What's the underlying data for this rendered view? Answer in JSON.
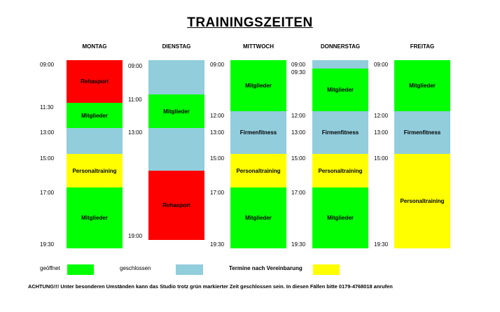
{
  "title": "TRAININGSZEITEN",
  "colors": {
    "geoeffnet": "#00ff00",
    "geschlossen": "#92cddc",
    "vereinbarung": "#ffff00",
    "rehasport": "#ff0000"
  },
  "days": {
    "montag": {
      "name": "MONTAG",
      "times": [
        "09:00",
        "11:30",
        "13:00",
        "15:00",
        "17:00",
        "19:30"
      ],
      "blocks": [
        "Rehasport",
        "Mitglieder",
        "",
        "Personaltraining",
        "Mitglieder"
      ]
    },
    "dienstag": {
      "name": "DIENSTAG",
      "times": [
        "09:00",
        "11:00",
        "13:00",
        "19:00"
      ],
      "blocks": [
        "",
        "Mitglieder",
        "",
        "Rehasport"
      ]
    },
    "mittwoch": {
      "name": "MITTWOCH",
      "times": [
        "09:00",
        "12:00",
        "13:00",
        "15:00",
        "17:00",
        "19:30"
      ],
      "blocks": [
        "Mitglieder",
        "Firmenfitness",
        "Personaltraining",
        "Mitglieder"
      ]
    },
    "donnerstag": {
      "name": "DONNERSTAG",
      "times": [
        "09:00",
        "09:30",
        "12:00",
        "13:00",
        "15:00",
        "17:00",
        "19:30"
      ],
      "blocks": [
        "",
        "Mitglieder",
        "Firmenfitness",
        "Personaltraining",
        "Mitglieder"
      ]
    },
    "freitag": {
      "name": "FREITAG",
      "times": [
        "09:00",
        "12:00",
        "13:00",
        "15:00",
        "19:30"
      ],
      "blocks": [
        "Mitglieder",
        "Firmenfitness",
        "Personaltraining"
      ]
    }
  },
  "legend": {
    "open": "geöffnet",
    "closed": "geschlossen",
    "appointment": "Termine nach Vereinbarung"
  },
  "notice": "ACHTUNG!!!  Unter besonderen Umständen kann das Studio trotz grün markierter Zeit geschlossen sein. In diesen Fällen bitte 0179-4768018 anrufen"
}
